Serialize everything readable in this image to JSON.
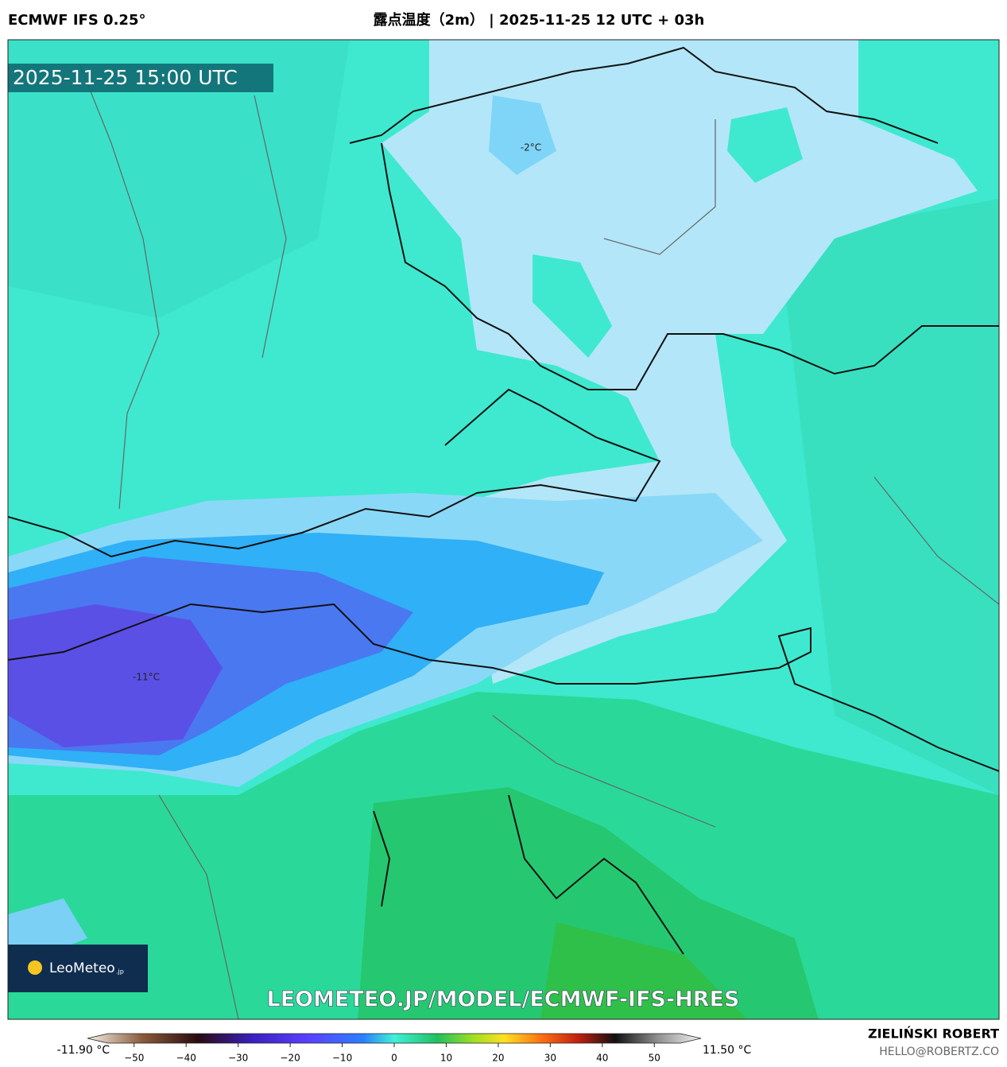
{
  "header": {
    "model": "ECMWF IFS 0.25°",
    "title": "露点温度（2m） | 2025-11-25 12 UTC + 03h"
  },
  "map": {
    "timestamp": "2025-11-25 15:00 UTC",
    "contour_labels": [
      "-2°C",
      "-11°C"
    ],
    "watermark": "LEOMETEO.JP/MODEL/ECMWF-IFS-HRES",
    "logo": {
      "name": "LeoMeteo",
      "suffix": ".jp"
    }
  },
  "colorbar": {
    "min_label": "-11.90 °C",
    "max_label": "11.50 °C",
    "range": [
      -55,
      55
    ],
    "ticks": [
      {
        "value": -50,
        "label": "−50"
      },
      {
        "value": -40,
        "label": "−40"
      },
      {
        "value": -30,
        "label": "−30"
      },
      {
        "value": -20,
        "label": "−20"
      },
      {
        "value": -10,
        "label": "−10"
      },
      0,
      10,
      20,
      30,
      40,
      50
    ]
  },
  "footer": {
    "author": "ZIELIŃSKI ROBERT",
    "email": "HELLO@ROBERTZ.CO"
  }
}
